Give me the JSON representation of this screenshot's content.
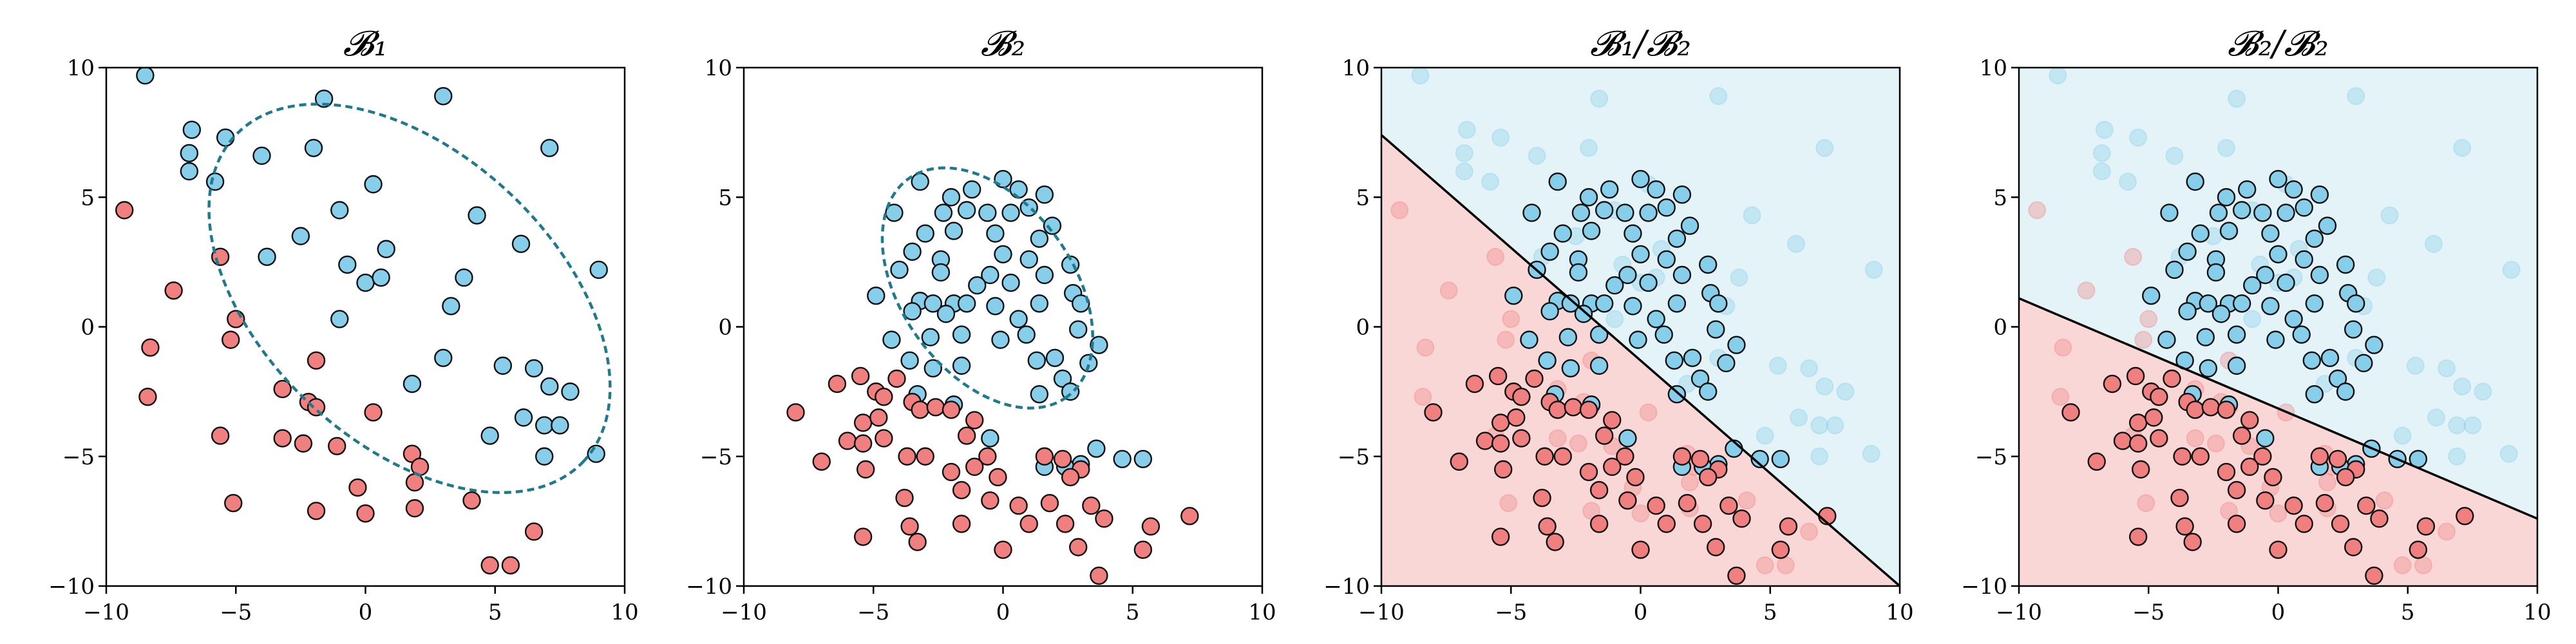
{
  "chart_data": [
    {
      "type": "scatter",
      "title": "𝓑₁",
      "xlim": [
        -10,
        10
      ],
      "ylim": [
        -10,
        10
      ],
      "xticks": [
        "−10",
        "−5",
        "0",
        "5",
        "10"
      ],
      "yticks": [
        "10",
        "5",
        "0",
        "−5",
        "−10"
      ],
      "grid": false,
      "decision_region": null,
      "ellipse": {
        "cx": 1.7,
        "cy": 1.1,
        "rx": 9.2,
        "ry": 5.6,
        "angle_deg": -43
      },
      "series": [
        {
          "color": "#87ceeb",
          "points": [
            [
              -8.5,
              9.7
            ],
            [
              -6.7,
              7.6
            ],
            [
              -6.8,
              6.7
            ],
            [
              -6.8,
              6.0
            ],
            [
              -5.4,
              7.3
            ],
            [
              -5.8,
              5.6
            ],
            [
              -4.0,
              6.6
            ],
            [
              -1.6,
              8.8
            ],
            [
              -2.0,
              6.9
            ],
            [
              -1.0,
              4.5
            ],
            [
              0.3,
              5.5
            ],
            [
              3.0,
              8.9
            ],
            [
              7.1,
              6.9
            ],
            [
              4.3,
              4.3
            ],
            [
              -3.8,
              2.7
            ],
            [
              -2.5,
              3.5
            ],
            [
              -0.7,
              2.4
            ],
            [
              0.8,
              3.0
            ],
            [
              0.0,
              1.7
            ],
            [
              0.6,
              1.9
            ],
            [
              -1.0,
              0.3
            ],
            [
              3.8,
              1.9
            ],
            [
              3.3,
              0.8
            ],
            [
              6.0,
              3.2
            ],
            [
              9.0,
              2.2
            ],
            [
              1.8,
              -2.2
            ],
            [
              3.0,
              -1.2
            ],
            [
              5.3,
              -1.5
            ],
            [
              6.5,
              -1.6
            ],
            [
              7.1,
              -2.3
            ],
            [
              7.9,
              -2.5
            ],
            [
              6.1,
              -3.5
            ],
            [
              6.9,
              -3.8
            ],
            [
              7.5,
              -3.8
            ],
            [
              4.8,
              -4.2
            ],
            [
              6.9,
              -5.0
            ],
            [
              8.9,
              -4.9
            ]
          ]
        },
        {
          "color": "#f08080",
          "points": [
            [
              -9.3,
              4.5
            ],
            [
              -5.6,
              2.7
            ],
            [
              -7.4,
              1.4
            ],
            [
              -8.3,
              -0.8
            ],
            [
              -5.0,
              0.3
            ],
            [
              -5.2,
              -0.5
            ],
            [
              -1.9,
              -1.3
            ],
            [
              -8.4,
              -2.7
            ],
            [
              -3.2,
              -2.4
            ],
            [
              -2.2,
              -2.9
            ],
            [
              -1.9,
              -3.1
            ],
            [
              0.3,
              -3.3
            ],
            [
              -5.6,
              -4.2
            ],
            [
              -3.2,
              -4.3
            ],
            [
              -2.4,
              -4.5
            ],
            [
              -1.1,
              -4.6
            ],
            [
              1.8,
              -4.9
            ],
            [
              2.1,
              -5.4
            ],
            [
              1.9,
              -6.0
            ],
            [
              -0.3,
              -6.2
            ],
            [
              -5.1,
              -6.8
            ],
            [
              -1.9,
              -7.1
            ],
            [
              0.0,
              -7.2
            ],
            [
              1.9,
              -7.0
            ],
            [
              4.1,
              -6.7
            ],
            [
              6.5,
              -7.9
            ],
            [
              4.8,
              -9.2
            ],
            [
              5.6,
              -9.2
            ]
          ]
        }
      ]
    },
    {
      "type": "scatter",
      "title": "𝓑₂",
      "xlim": [
        -10,
        10
      ],
      "ylim": [
        -10,
        10
      ],
      "xticks": [
        "−10",
        "−5",
        "0",
        "5",
        "10"
      ],
      "yticks": [
        "10",
        "5",
        "0",
        "−5",
        "−10"
      ],
      "grid": false,
      "decision_region": null,
      "ellipse": {
        "cx": -0.6,
        "cy": 1.5,
        "rx": 5.2,
        "ry": 3.3,
        "angle_deg": -54
      },
      "series": [
        {
          "color": "#87ceeb",
          "points": [
            [
              -3.2,
              5.6
            ],
            [
              -2.0,
              5.0
            ],
            [
              -1.2,
              5.3
            ],
            [
              0.0,
              5.7
            ],
            [
              0.6,
              5.3
            ],
            [
              -4.2,
              4.4
            ],
            [
              -2.3,
              4.4
            ],
            [
              -1.4,
              4.5
            ],
            [
              -0.6,
              4.4
            ],
            [
              0.3,
              4.4
            ],
            [
              1.0,
              4.6
            ],
            [
              1.6,
              5.1
            ],
            [
              -3.0,
              3.6
            ],
            [
              -1.9,
              3.7
            ],
            [
              -0.3,
              3.6
            ],
            [
              1.4,
              3.4
            ],
            [
              1.9,
              3.9
            ],
            [
              -3.5,
              2.9
            ],
            [
              -2.4,
              2.6
            ],
            [
              0.0,
              2.8
            ],
            [
              1.0,
              2.6
            ],
            [
              -4.0,
              2.2
            ],
            [
              -2.4,
              2.1
            ],
            [
              -0.5,
              2.0
            ],
            [
              1.6,
              2.0
            ],
            [
              2.6,
              2.4
            ],
            [
              -1.0,
              1.6
            ],
            [
              0.3,
              1.7
            ],
            [
              2.7,
              1.3
            ],
            [
              -4.9,
              1.2
            ],
            [
              -3.2,
              1.0
            ],
            [
              -2.7,
              0.9
            ],
            [
              -1.9,
              0.9
            ],
            [
              -1.4,
              0.9
            ],
            [
              0.6,
              0.3
            ],
            [
              1.4,
              0.9
            ],
            [
              3.0,
              0.9
            ],
            [
              -3.5,
              0.6
            ],
            [
              -2.2,
              0.5
            ],
            [
              -0.3,
              0.8
            ],
            [
              0.9,
              -0.3
            ],
            [
              -1.6,
              -0.3
            ],
            [
              -0.1,
              -0.5
            ],
            [
              2.9,
              -0.1
            ],
            [
              -4.3,
              -0.5
            ],
            [
              -2.8,
              -0.4
            ],
            [
              -3.6,
              -1.3
            ],
            [
              1.3,
              -1.3
            ],
            [
              2.0,
              -1.2
            ],
            [
              3.7,
              -0.7
            ],
            [
              3.3,
              -1.4
            ],
            [
              -2.7,
              -1.6
            ],
            [
              -1.6,
              -1.5
            ],
            [
              2.3,
              -2.0
            ],
            [
              2.6,
              -2.5
            ],
            [
              1.4,
              -2.6
            ],
            [
              -3.3,
              -2.6
            ],
            [
              -0.5,
              -4.3
            ],
            [
              -1.9,
              -3.0
            ],
            [
              3.6,
              -4.7
            ],
            [
              4.6,
              -5.1
            ],
            [
              3.0,
              -5.3
            ],
            [
              1.6,
              -5.4
            ],
            [
              2.4,
              -5.4
            ],
            [
              5.4,
              -5.1
            ]
          ]
        },
        {
          "color": "#f08080",
          "points": [
            [
              -5.5,
              -1.9
            ],
            [
              -6.4,
              -2.2
            ],
            [
              -4.1,
              -2.0
            ],
            [
              -4.9,
              -2.5
            ],
            [
              -4.6,
              -2.7
            ],
            [
              -3.5,
              -2.9
            ],
            [
              -3.2,
              -3.2
            ],
            [
              -2.6,
              -3.1
            ],
            [
              -8.0,
              -3.3
            ],
            [
              -5.4,
              -3.7
            ],
            [
              -4.8,
              -3.5
            ],
            [
              -2.0,
              -3.2
            ],
            [
              -1.1,
              -3.6
            ],
            [
              -1.4,
              -4.2
            ],
            [
              -6.0,
              -4.4
            ],
            [
              -5.4,
              -4.5
            ],
            [
              -4.6,
              -4.3
            ],
            [
              -7.0,
              -5.2
            ],
            [
              -5.3,
              -5.5
            ],
            [
              -3.7,
              -5.0
            ],
            [
              -3.0,
              -5.0
            ],
            [
              -0.6,
              -5.0
            ],
            [
              1.6,
              -5.0
            ],
            [
              -1.1,
              -5.4
            ],
            [
              -2.0,
              -5.6
            ],
            [
              -0.2,
              -5.8
            ],
            [
              2.3,
              -5.1
            ],
            [
              3.0,
              -5.5
            ],
            [
              2.6,
              -5.8
            ],
            [
              -1.6,
              -6.3
            ],
            [
              -3.8,
              -6.6
            ],
            [
              -0.5,
              -6.7
            ],
            [
              1.8,
              -6.8
            ],
            [
              0.6,
              -6.9
            ],
            [
              3.4,
              -6.9
            ],
            [
              -3.6,
              -7.7
            ],
            [
              -1.6,
              -7.6
            ],
            [
              1.0,
              -7.6
            ],
            [
              2.4,
              -7.6
            ],
            [
              3.9,
              -7.4
            ],
            [
              5.7,
              -7.7
            ],
            [
              7.2,
              -7.3
            ],
            [
              -5.4,
              -8.1
            ],
            [
              -3.3,
              -8.3
            ],
            [
              0.0,
              -8.6
            ],
            [
              2.9,
              -8.5
            ],
            [
              5.4,
              -8.6
            ],
            [
              3.7,
              -9.6
            ]
          ]
        }
      ]
    },
    {
      "type": "scatter",
      "title": "𝓑₁/𝓑₂",
      "xlim": [
        -10,
        10
      ],
      "ylim": [
        -10,
        10
      ],
      "xticks": [
        "−10",
        "−5",
        "0",
        "5",
        "10"
      ],
      "yticks": [
        "10",
        "5",
        "0",
        "−5",
        "−10"
      ],
      "grid": false,
      "decision_region": {
        "upper_color": "#e4f3f7",
        "lower_color": "#f9d7d7",
        "line": [
          [
            -10,
            7.4
          ],
          [
            10,
            -10
          ]
        ]
      },
      "faded_set": 0,
      "solid_set": 1
    },
    {
      "type": "scatter",
      "title": "𝓑₂/𝓑₂",
      "xlim": [
        -10,
        10
      ],
      "ylim": [
        -10,
        10
      ],
      "xticks": [
        "−10",
        "−5",
        "0",
        "5",
        "10"
      ],
      "yticks": [
        "10",
        "5",
        "0",
        "−5",
        "−10"
      ],
      "grid": false,
      "decision_region": {
        "upper_color": "#e4f3f7",
        "lower_color": "#f9d7d7",
        "line": [
          [
            -10,
            1.1
          ],
          [
            10,
            -7.4
          ]
        ]
      },
      "faded_set": 0,
      "solid_set": 1
    }
  ]
}
